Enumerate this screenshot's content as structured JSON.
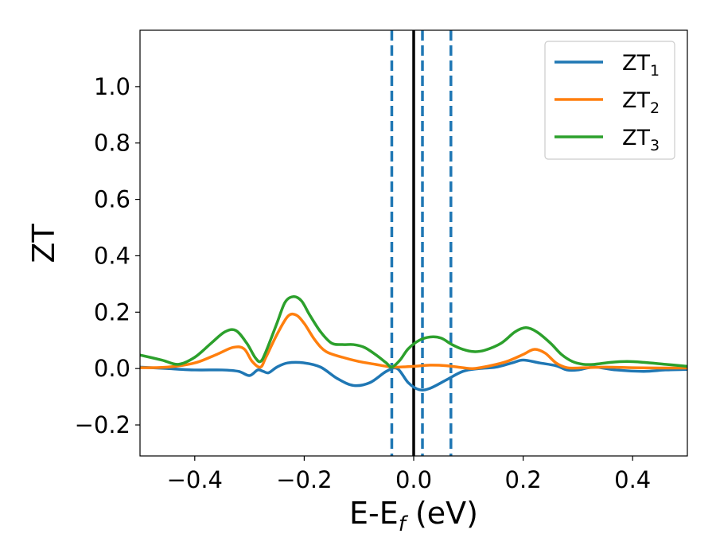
{
  "chart_data": {
    "type": "line",
    "title": "",
    "xlabel": "E-E",
    "xlabel_sub": "f",
    "xlabel_unit": "(eV)",
    "ylabel": "ZT",
    "xlim": [
      -0.5,
      0.5
    ],
    "ylim": [
      -0.31,
      1.2
    ],
    "xticks": [
      -0.4,
      -0.2,
      0.0,
      0.2,
      0.4
    ],
    "xtick_labels": [
      "−0.4",
      "−0.2",
      "0.0",
      "0.2",
      "0.4"
    ],
    "yticks": [
      -0.2,
      0.0,
      0.2,
      0.4,
      0.6,
      0.8,
      1.0
    ],
    "ytick_labels": [
      "−0.2",
      "0.0",
      "0.2",
      "0.4",
      "0.6",
      "0.8",
      "1.0"
    ],
    "grid": false,
    "legend_position": "top-right",
    "vertical_lines": [
      {
        "x": 0.0,
        "style": "solid",
        "color": "#000000"
      },
      {
        "x": -0.04,
        "style": "dashed",
        "color": "#1f77b4"
      },
      {
        "x": 0.016,
        "style": "dashed",
        "color": "#1f77b4"
      },
      {
        "x": 0.068,
        "style": "dashed",
        "color": "#1f77b4"
      }
    ],
    "series": [
      {
        "name": "ZT",
        "name_sub": "1",
        "color": "#1f77b4",
        "points": [
          [
            -0.5,
            0.005
          ],
          [
            -0.45,
            0.0
          ],
          [
            -0.4,
            -0.005
          ],
          [
            -0.35,
            -0.005
          ],
          [
            -0.32,
            -0.01
          ],
          [
            -0.3,
            -0.025
          ],
          [
            -0.285,
            -0.005
          ],
          [
            -0.275,
            -0.01
          ],
          [
            -0.265,
            -0.015
          ],
          [
            -0.25,
            0.005
          ],
          [
            -0.23,
            0.02
          ],
          [
            -0.2,
            0.02
          ],
          [
            -0.17,
            0.005
          ],
          [
            -0.14,
            -0.035
          ],
          [
            -0.11,
            -0.06
          ],
          [
            -0.08,
            -0.05
          ],
          [
            -0.05,
            -0.01
          ],
          [
            -0.03,
            0.0
          ],
          [
            -0.01,
            -0.05
          ],
          [
            0.01,
            -0.075
          ],
          [
            0.03,
            -0.07
          ],
          [
            0.06,
            -0.04
          ],
          [
            0.09,
            -0.01
          ],
          [
            0.12,
            0.0
          ],
          [
            0.15,
            0.005
          ],
          [
            0.18,
            0.02
          ],
          [
            0.2,
            0.03
          ],
          [
            0.23,
            0.02
          ],
          [
            0.26,
            0.01
          ],
          [
            0.28,
            -0.005
          ],
          [
            0.3,
            -0.005
          ],
          [
            0.33,
            0.005
          ],
          [
            0.37,
            -0.005
          ],
          [
            0.42,
            -0.01
          ],
          [
            0.46,
            -0.005
          ],
          [
            0.5,
            -0.003
          ]
        ]
      },
      {
        "name": "ZT",
        "name_sub": "2",
        "color": "#ff7f0e",
        "points": [
          [
            -0.5,
            0.003
          ],
          [
            -0.45,
            0.005
          ],
          [
            -0.4,
            0.02
          ],
          [
            -0.36,
            0.05
          ],
          [
            -0.33,
            0.075
          ],
          [
            -0.31,
            0.07
          ],
          [
            -0.295,
            0.025
          ],
          [
            -0.28,
            0.005
          ],
          [
            -0.27,
            0.04
          ],
          [
            -0.25,
            0.12
          ],
          [
            -0.23,
            0.185
          ],
          [
            -0.215,
            0.19
          ],
          [
            -0.2,
            0.16
          ],
          [
            -0.18,
            0.1
          ],
          [
            -0.16,
            0.06
          ],
          [
            -0.13,
            0.04
          ],
          [
            -0.1,
            0.025
          ],
          [
            -0.07,
            0.015
          ],
          [
            -0.05,
            0.008
          ],
          [
            -0.03,
            0.005
          ],
          [
            0.0,
            0.008
          ],
          [
            0.03,
            0.012
          ],
          [
            0.06,
            0.01
          ],
          [
            0.09,
            0.003
          ],
          [
            0.11,
            0.0
          ],
          [
            0.14,
            0.01
          ],
          [
            0.17,
            0.025
          ],
          [
            0.2,
            0.05
          ],
          [
            0.22,
            0.068
          ],
          [
            0.24,
            0.055
          ],
          [
            0.26,
            0.02
          ],
          [
            0.28,
            0.003
          ],
          [
            0.3,
            0.002
          ],
          [
            0.35,
            0.005
          ],
          [
            0.4,
            0.003
          ],
          [
            0.45,
            0.002
          ],
          [
            0.5,
            0.002
          ]
        ]
      },
      {
        "name": "ZT",
        "name_sub": "3",
        "color": "#2ca02c",
        "points": [
          [
            -0.5,
            0.048
          ],
          [
            -0.46,
            0.03
          ],
          [
            -0.43,
            0.015
          ],
          [
            -0.4,
            0.04
          ],
          [
            -0.37,
            0.09
          ],
          [
            -0.345,
            0.13
          ],
          [
            -0.325,
            0.135
          ],
          [
            -0.305,
            0.09
          ],
          [
            -0.29,
            0.04
          ],
          [
            -0.28,
            0.025
          ],
          [
            -0.27,
            0.06
          ],
          [
            -0.25,
            0.16
          ],
          [
            -0.235,
            0.235
          ],
          [
            -0.22,
            0.255
          ],
          [
            -0.205,
            0.24
          ],
          [
            -0.19,
            0.19
          ],
          [
            -0.17,
            0.13
          ],
          [
            -0.15,
            0.09
          ],
          [
            -0.13,
            0.085
          ],
          [
            -0.11,
            0.085
          ],
          [
            -0.09,
            0.075
          ],
          [
            -0.07,
            0.05
          ],
          [
            -0.05,
            0.02
          ],
          [
            -0.04,
            0.005
          ],
          [
            -0.025,
            0.03
          ],
          [
            -0.01,
            0.07
          ],
          [
            0.01,
            0.1
          ],
          [
            0.03,
            0.112
          ],
          [
            0.05,
            0.108
          ],
          [
            0.07,
            0.085
          ],
          [
            0.09,
            0.068
          ],
          [
            0.11,
            0.06
          ],
          [
            0.13,
            0.065
          ],
          [
            0.16,
            0.09
          ],
          [
            0.185,
            0.13
          ],
          [
            0.205,
            0.145
          ],
          [
            0.225,
            0.13
          ],
          [
            0.25,
            0.09
          ],
          [
            0.27,
            0.05
          ],
          [
            0.29,
            0.025
          ],
          [
            0.31,
            0.015
          ],
          [
            0.33,
            0.015
          ],
          [
            0.36,
            0.022
          ],
          [
            0.39,
            0.025
          ],
          [
            0.42,
            0.022
          ],
          [
            0.46,
            0.015
          ],
          [
            0.5,
            0.008
          ]
        ]
      }
    ]
  }
}
